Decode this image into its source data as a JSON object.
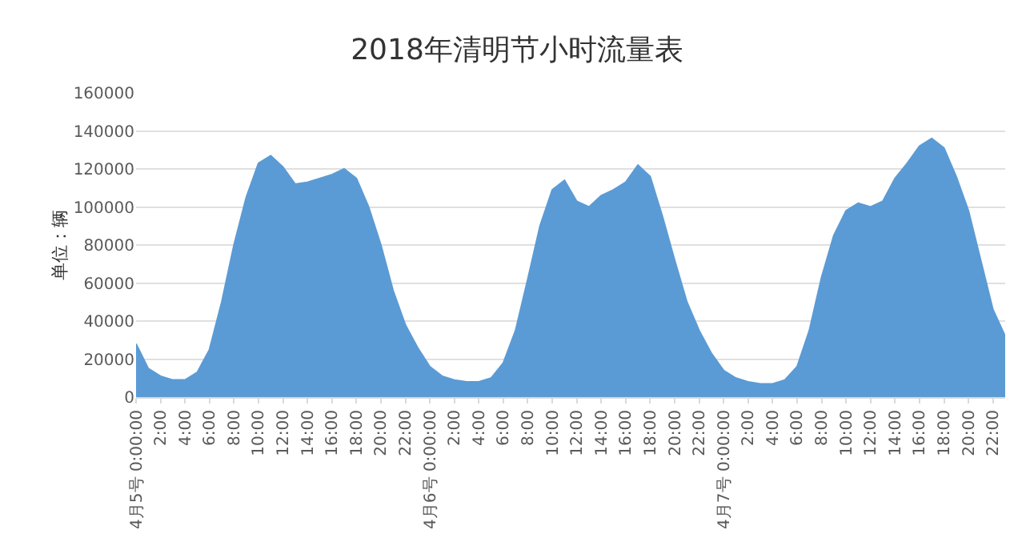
{
  "chart_data": {
    "type": "area",
    "title": "2018年清明节小时流量表",
    "ylabel": "单位：辆",
    "categories": [
      "4月5号 0:00:00",
      null,
      "2:00",
      null,
      "4:00",
      null,
      "6:00",
      null,
      "8:00",
      null,
      "10:00",
      null,
      "12:00",
      null,
      "14:00",
      null,
      "16:00",
      null,
      "18:00",
      null,
      "20:00",
      null,
      "22:00",
      null,
      "4月6号 0:00:00",
      null,
      "2:00",
      null,
      "4:00",
      null,
      "6:00",
      null,
      "8:00",
      null,
      "10:00",
      null,
      "12:00",
      null,
      "14:00",
      null,
      "16:00",
      null,
      "18:00",
      null,
      "20:00",
      null,
      "22:00",
      null,
      "4月7号 0:00:00",
      null,
      "2:00",
      null,
      "4:00",
      null,
      "6:00",
      null,
      "8:00",
      null,
      "10:00",
      null,
      "12:00",
      null,
      "14:00",
      null,
      "16:00",
      null,
      "18:00",
      null,
      "20:00",
      null,
      "22:00",
      null
    ],
    "values": [
      28000,
      15000,
      11000,
      9000,
      9000,
      13000,
      25000,
      50000,
      80000,
      105000,
      123000,
      127000,
      121000,
      112000,
      113000,
      115000,
      117000,
      120000,
      115000,
      100000,
      80000,
      56000,
      38000,
      26000,
      16000,
      11000,
      9000,
      8000,
      8000,
      10000,
      18000,
      35000,
      62000,
      90000,
      109000,
      114000,
      103000,
      100000,
      106000,
      109000,
      113000,
      122000,
      116000,
      95000,
      72000,
      50000,
      35000,
      23000,
      14000,
      10000,
      8000,
      7000,
      7000,
      9000,
      16000,
      35000,
      63000,
      85000,
      98000,
      102000,
      100000,
      103000,
      115000,
      123000,
      132000,
      136000,
      131000,
      116000,
      98000,
      72000,
      46000,
      32000
    ],
    "color": "#5b9bd5",
    "ylim": [
      0,
      160000
    ],
    "yticks": [
      0,
      20000,
      40000,
      60000,
      80000,
      100000,
      120000,
      140000,
      160000
    ],
    "grid": "y"
  }
}
